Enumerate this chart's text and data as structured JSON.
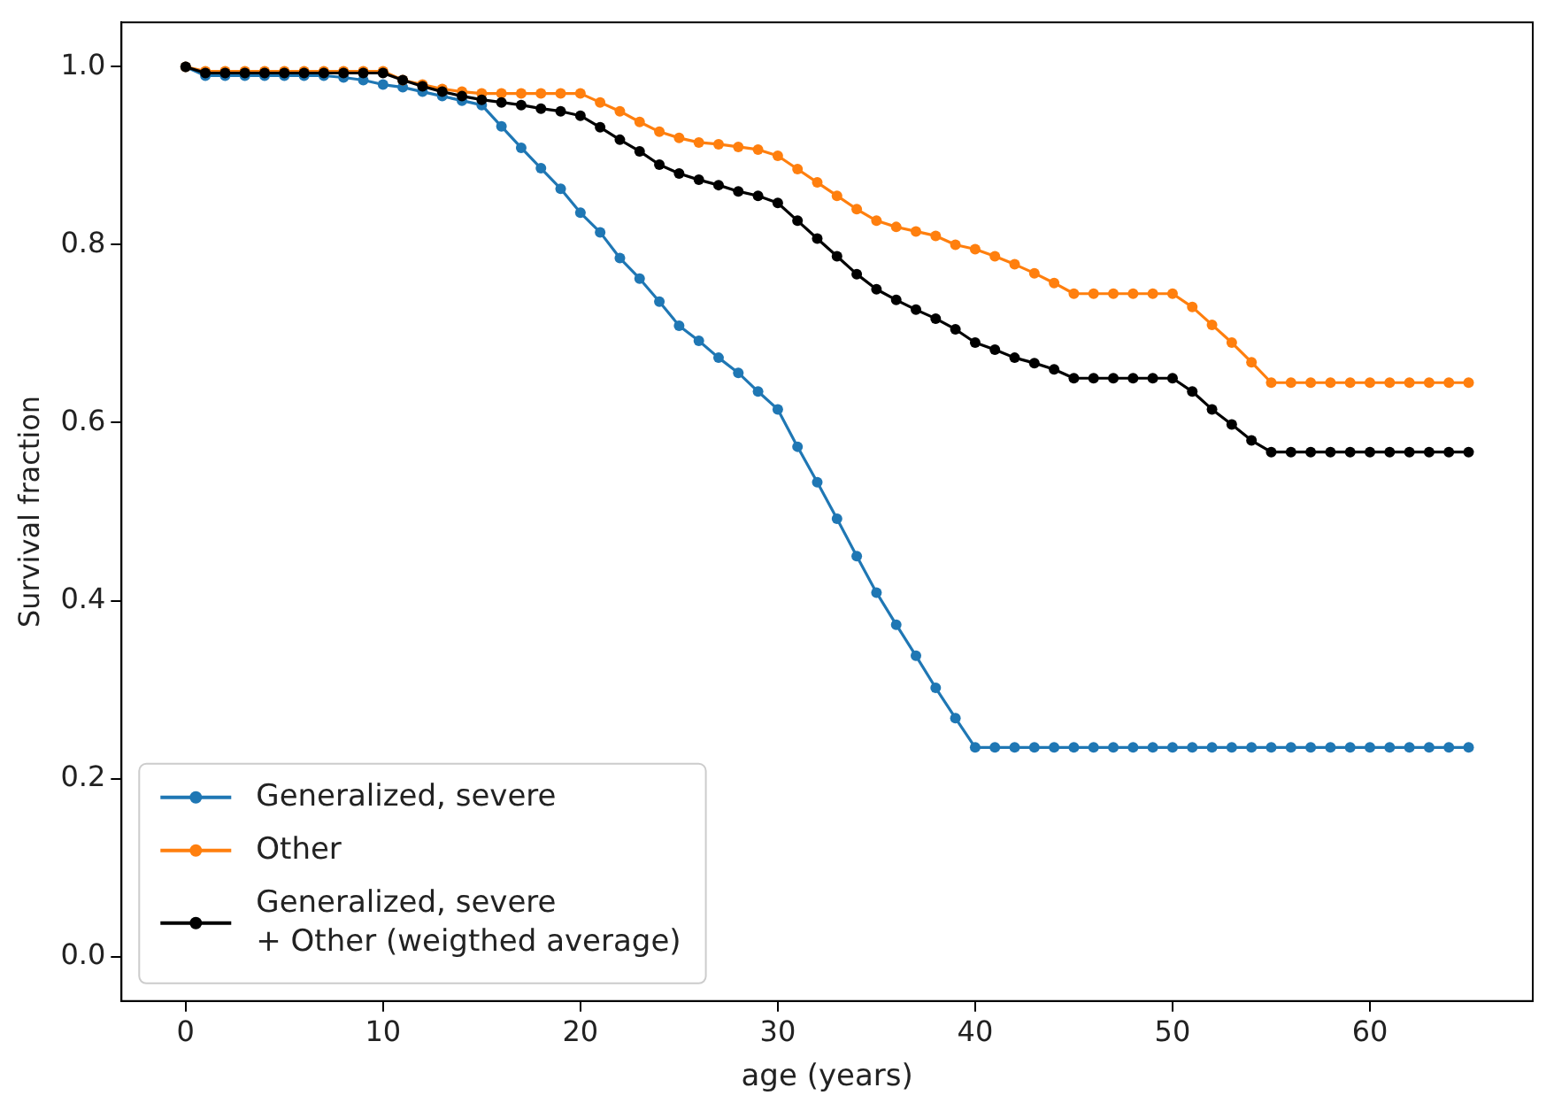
{
  "chart_data": {
    "type": "line",
    "xlabel": "age (years)",
    "ylabel": "Survival fraction",
    "x": [
      0,
      1,
      2,
      3,
      4,
      5,
      6,
      7,
      8,
      9,
      10,
      11,
      12,
      13,
      14,
      15,
      16,
      17,
      18,
      19,
      20,
      21,
      22,
      23,
      24,
      25,
      26,
      27,
      28,
      29,
      30,
      31,
      32,
      33,
      34,
      35,
      36,
      37,
      38,
      39,
      40,
      41,
      42,
      43,
      44,
      45,
      46,
      47,
      48,
      49,
      50,
      51,
      52,
      53,
      54,
      55,
      56,
      57,
      58,
      59,
      60,
      61,
      62,
      63,
      64,
      65
    ],
    "series": [
      {
        "name": "Generalized, severe",
        "color": "#1f77b4",
        "values": [
          1.0,
          0.99,
          0.99,
          0.99,
          0.99,
          0.99,
          0.99,
          0.99,
          0.988,
          0.985,
          0.98,
          0.977,
          0.972,
          0.967,
          0.962,
          0.957,
          0.933,
          0.909,
          0.886,
          0.863,
          0.836,
          0.814,
          0.785,
          0.762,
          0.736,
          0.709,
          0.692,
          0.673,
          0.656,
          0.635,
          0.615,
          0.573,
          0.533,
          0.492,
          0.45,
          0.409,
          0.373,
          0.338,
          0.302,
          0.268,
          0.235,
          0.235,
          0.235,
          0.235,
          0.235,
          0.235,
          0.235,
          0.235,
          0.235,
          0.235,
          0.235,
          0.235,
          0.235,
          0.235,
          0.235,
          0.235,
          0.235,
          0.235,
          0.235,
          0.235,
          0.235,
          0.235,
          0.235,
          0.235,
          0.235,
          0.235
        ]
      },
      {
        "name": "Other",
        "color": "#ff7f0e",
        "values": [
          1.0,
          0.995,
          0.995,
          0.995,
          0.995,
          0.995,
          0.995,
          0.995,
          0.995,
          0.995,
          0.995,
          0.985,
          0.98,
          0.975,
          0.972,
          0.97,
          0.97,
          0.97,
          0.97,
          0.97,
          0.97,
          0.96,
          0.95,
          0.938,
          0.927,
          0.92,
          0.915,
          0.913,
          0.91,
          0.907,
          0.9,
          0.885,
          0.87,
          0.855,
          0.84,
          0.827,
          0.82,
          0.815,
          0.81,
          0.8,
          0.795,
          0.787,
          0.778,
          0.768,
          0.757,
          0.745,
          0.745,
          0.745,
          0.745,
          0.745,
          0.745,
          0.73,
          0.71,
          0.69,
          0.668,
          0.645,
          0.645,
          0.645,
          0.645,
          0.645,
          0.645,
          0.645,
          0.645,
          0.645,
          0.645,
          0.645
        ]
      },
      {
        "name": "Generalized, severe\n+ Other (weigthed average)",
        "color": "#000000",
        "values": [
          1.0,
          0.993,
          0.993,
          0.993,
          0.993,
          0.993,
          0.993,
          0.993,
          0.993,
          0.993,
          0.993,
          0.985,
          0.978,
          0.972,
          0.967,
          0.963,
          0.96,
          0.957,
          0.953,
          0.95,
          0.945,
          0.932,
          0.918,
          0.905,
          0.89,
          0.88,
          0.873,
          0.867,
          0.86,
          0.855,
          0.847,
          0.827,
          0.807,
          0.787,
          0.767,
          0.75,
          0.738,
          0.727,
          0.717,
          0.705,
          0.69,
          0.682,
          0.673,
          0.667,
          0.66,
          0.65,
          0.65,
          0.65,
          0.65,
          0.65,
          0.65,
          0.635,
          0.615,
          0.598,
          0.58,
          0.567,
          0.567,
          0.567,
          0.567,
          0.567,
          0.567,
          0.567,
          0.567,
          0.567,
          0.567,
          0.567
        ]
      }
    ],
    "xlim": [
      -3.25,
      68.25
    ],
    "xticks": [
      0,
      10,
      20,
      30,
      40,
      50,
      60
    ],
    "ylim": [
      -0.05,
      1.05
    ],
    "yticks": [
      {
        "value": 0,
        "label": "0.0"
      },
      {
        "value": 0.2,
        "label": "0.2"
      },
      {
        "value": 0.4,
        "label": "0.4"
      },
      {
        "value": 0.6,
        "label": "0.6"
      },
      {
        "value": 0.8,
        "label": "0.8"
      },
      {
        "value": 1,
        "label": "1.0"
      }
    ],
    "grid": false,
    "legend": "bottom left",
    "marker": "circle",
    "line_style": "solid"
  }
}
